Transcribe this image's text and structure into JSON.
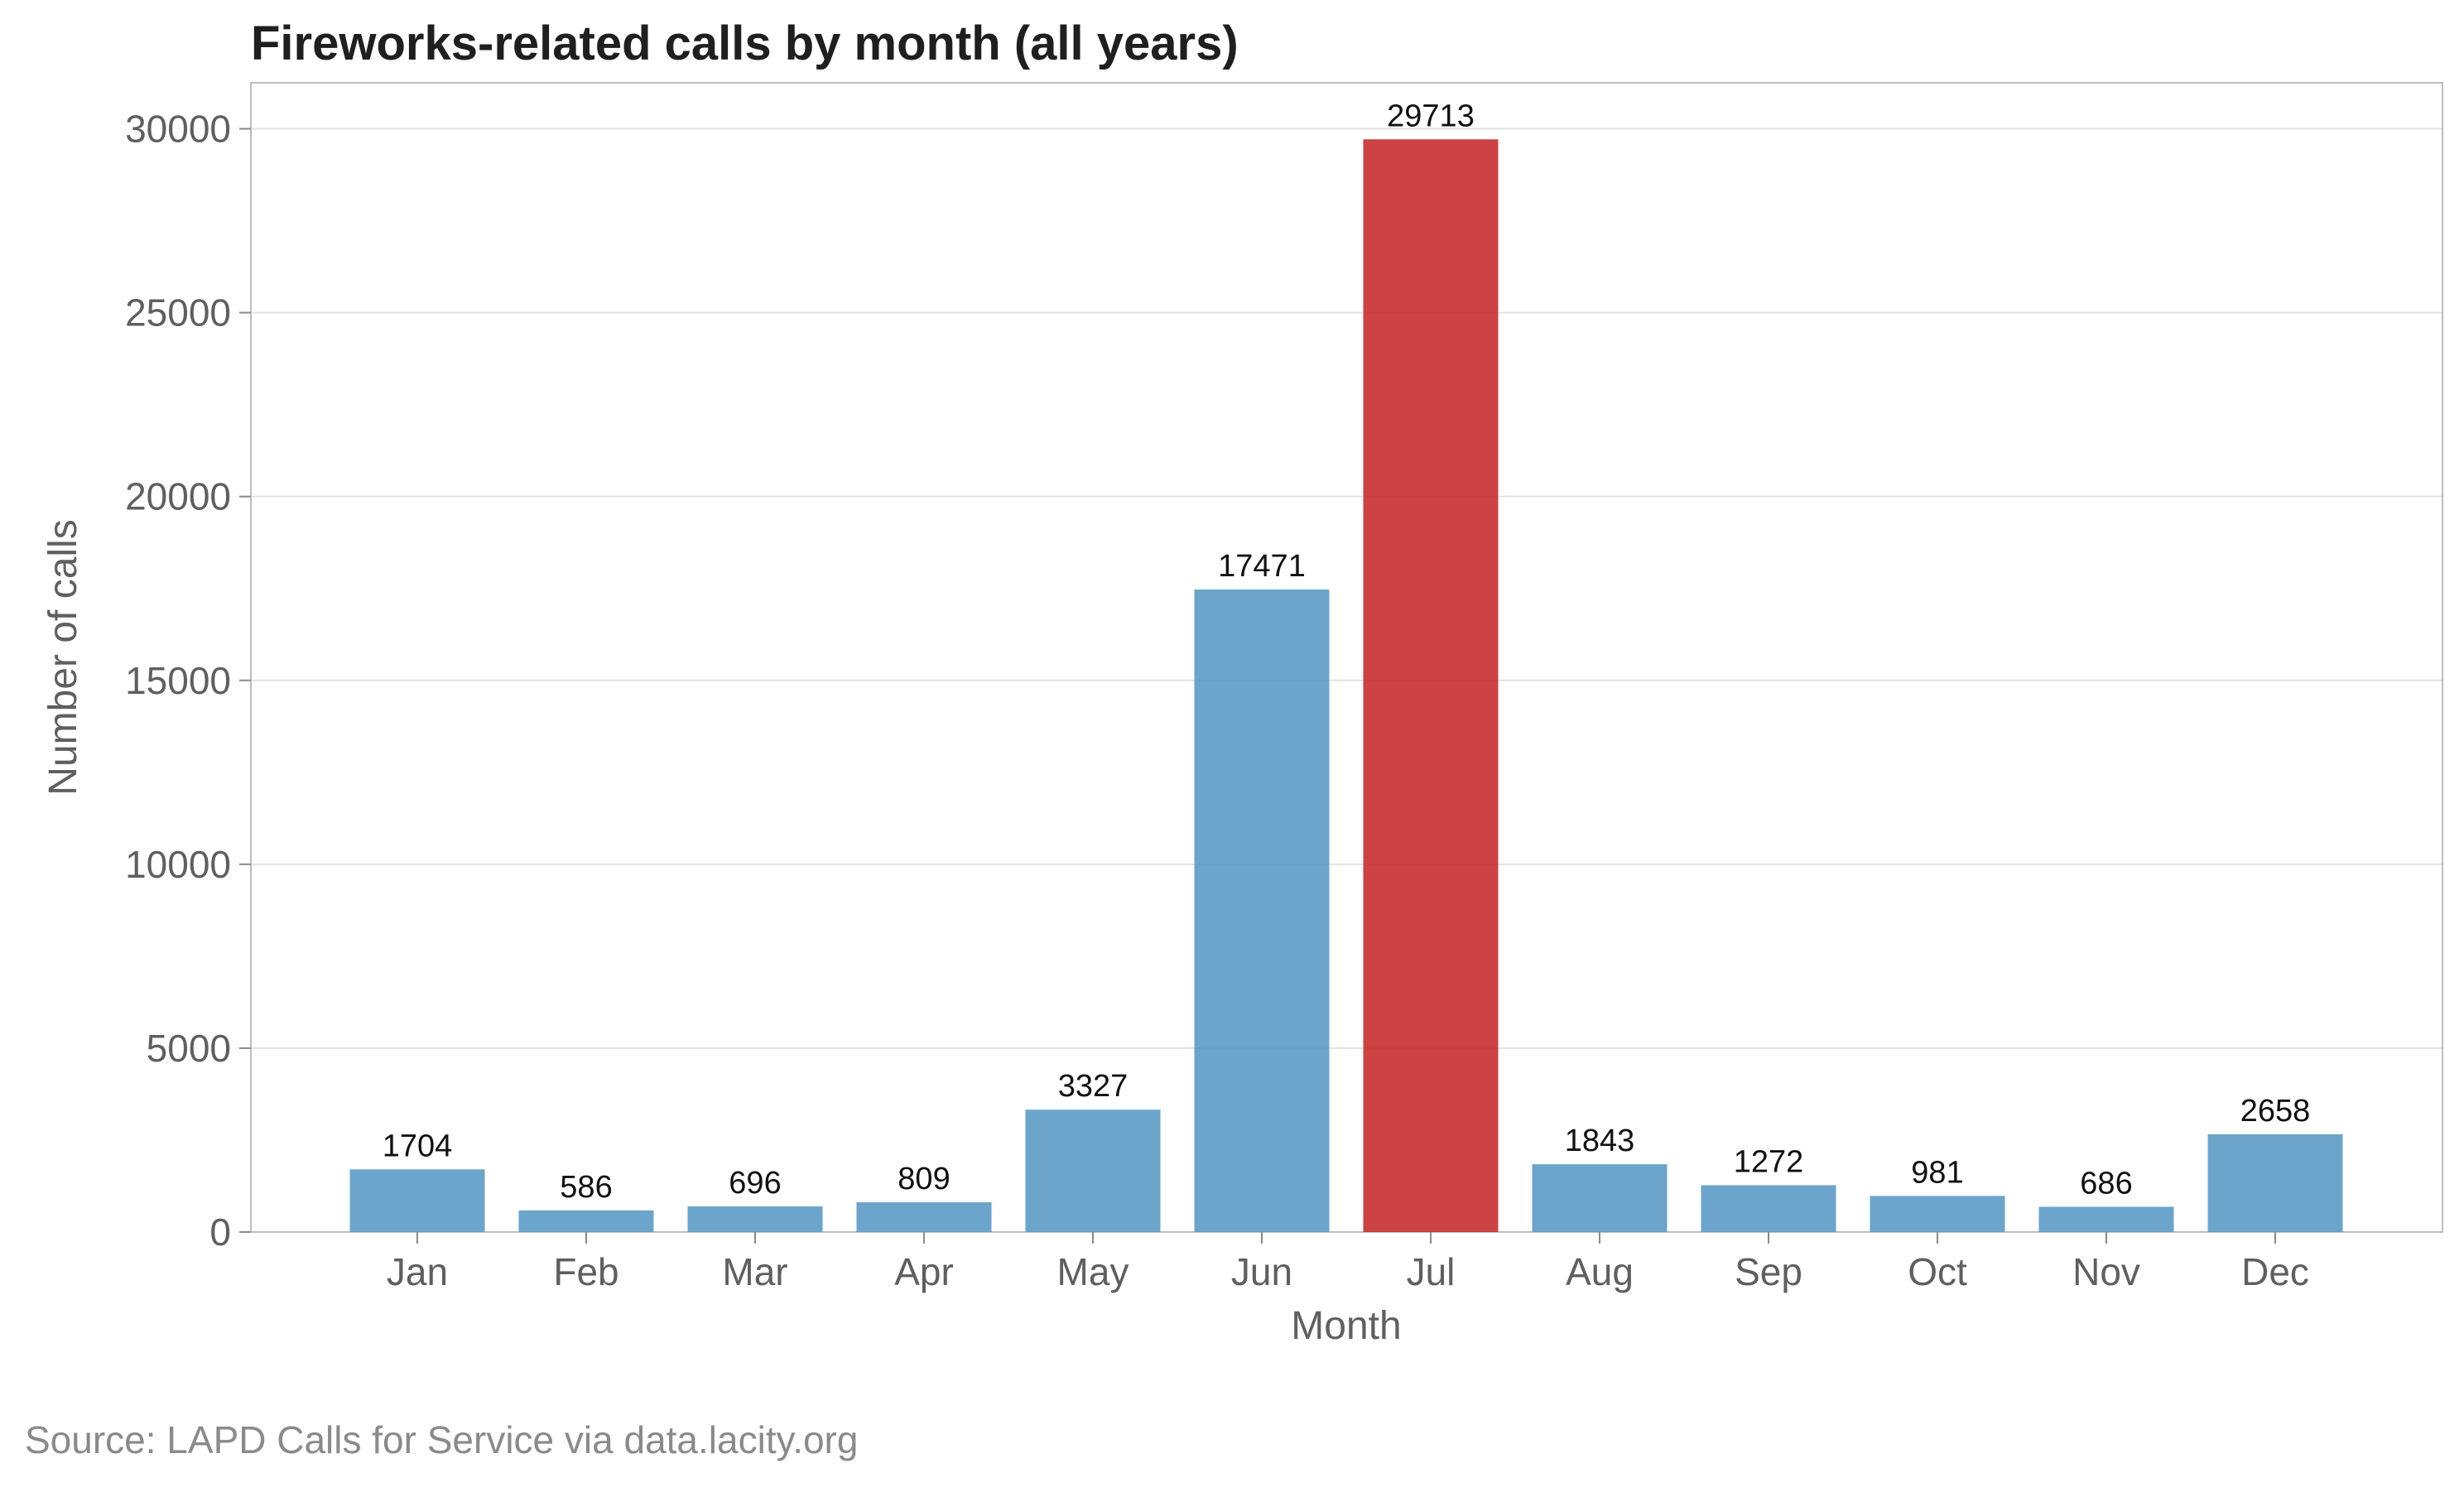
{
  "chart_data": {
    "type": "bar",
    "title": "Fireworks-related calls by month (all years)",
    "xlabel": "Month",
    "ylabel": "Number of calls",
    "categories": [
      "Jan",
      "Feb",
      "Mar",
      "Apr",
      "May",
      "Jun",
      "Jul",
      "Aug",
      "Sep",
      "Oct",
      "Nov",
      "Dec"
    ],
    "values": [
      1704,
      586,
      696,
      809,
      3327,
      17471,
      29713,
      1843,
      1272,
      981,
      686,
      2658
    ],
    "ylim": [
      0,
      31250
    ],
    "yticks": [
      0,
      5000,
      10000,
      15000,
      20000,
      25000,
      30000
    ],
    "grid": "horizontal",
    "highlight": {
      "category": "Jul",
      "color": "#c62828"
    },
    "colors": {
      "default_bar": "#5b9bc6",
      "highlight_bar": "#c62828"
    }
  },
  "source_note": "Source: LAPD Calls for Service via data.lacity.org"
}
